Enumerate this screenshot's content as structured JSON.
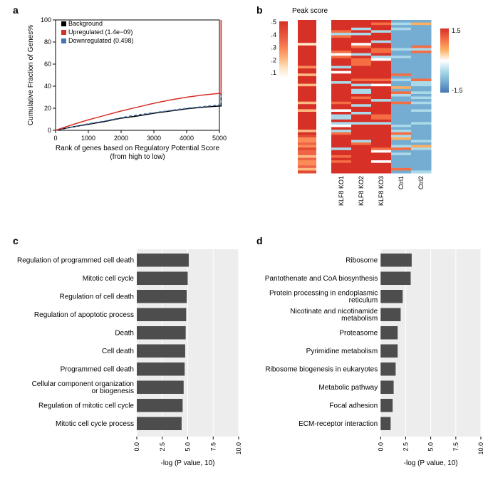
{
  "panels": {
    "a": "a",
    "b": "b",
    "c": "c",
    "d": "d"
  },
  "panel_a": {
    "type": "line",
    "xlabel": "Rank of genes based on Regulatory Potential Score",
    "xlabel2": "(from high to low)",
    "ylabel": "Cumulative Fraction of Genes%",
    "xlim": [
      0,
      5000
    ],
    "ylim": [
      0,
      100
    ],
    "xticks": [
      0,
      1000,
      2000,
      3000,
      4000,
      5000
    ],
    "yticks": [
      0,
      20,
      40,
      60,
      80,
      100
    ],
    "legend": [
      {
        "label": "Background",
        "color": "#000000"
      },
      {
        "label": "Upregulated (1.4e−09)",
        "color": "#d73027"
      },
      {
        "label": "Downregulated (0.498)",
        "color": "#4575b4"
      }
    ],
    "series": {
      "background": [
        [
          0,
          0
        ],
        [
          500,
          3
        ],
        [
          1000,
          5.5
        ],
        [
          1500,
          8
        ],
        [
          2000,
          11
        ],
        [
          2500,
          13
        ],
        [
          3000,
          15.5
        ],
        [
          3500,
          17.5
        ],
        [
          4000,
          19.5
        ],
        [
          4500,
          21
        ],
        [
          5000,
          22
        ],
        [
          5050,
          22
        ],
        [
          5050,
          100
        ]
      ],
      "upregulated": [
        [
          0,
          0
        ],
        [
          500,
          5
        ],
        [
          1000,
          9.5
        ],
        [
          1500,
          13.5
        ],
        [
          2000,
          17.5
        ],
        [
          2500,
          21
        ],
        [
          3000,
          24.5
        ],
        [
          3500,
          27.5
        ],
        [
          4000,
          30
        ],
        [
          4500,
          32
        ],
        [
          5000,
          33.5
        ],
        [
          5050,
          33.5
        ],
        [
          5050,
          100
        ]
      ],
      "downregulated": [
        [
          0,
          0
        ],
        [
          500,
          3
        ],
        [
          1000,
          6
        ],
        [
          1500,
          8.5
        ],
        [
          2000,
          11.5
        ],
        [
          2500,
          14
        ],
        [
          3000,
          16
        ],
        [
          3500,
          18
        ],
        [
          4000,
          20
        ],
        [
          4500,
          21.5
        ],
        [
          5000,
          23
        ],
        [
          5050,
          23
        ],
        [
          5050,
          100
        ]
      ]
    },
    "colors": {
      "background": "#000000",
      "upregulated": "#d73027",
      "downregulated": "#4575b4"
    },
    "line_width": 1.5,
    "dash": {
      "downregulated": "4,3"
    },
    "plot_bg": "#ffffff",
    "border_color": "#000000"
  },
  "panel_b": {
    "type": "heatmap",
    "peak_label": "Peak score",
    "peak_scale_ticks": [
      "0.5",
      "0.4",
      "0.3",
      "0.2",
      "0.1"
    ],
    "peak_scale_colors": [
      "#d73027",
      "#e34a33",
      "#ef6548",
      "#fc8d59",
      "#fdbb84",
      "#fee8c8",
      "#ffffff"
    ],
    "expr_scale_ticks": [
      "1.5",
      "-1.5"
    ],
    "expr_scale_colors": [
      "#d73027",
      "#f46d43",
      "#fdae61",
      "#ffffff",
      "#abd9e9",
      "#74add1",
      "#4575b4"
    ],
    "columns": [
      "KLF8 KO1",
      "KLF8 KO2",
      "KLF8 KO3",
      "Ctrl1",
      "Ctrl2"
    ],
    "col_colors_pattern": [
      "red",
      "red-mixed",
      "red-mixed",
      "blue",
      "blue"
    ],
    "n_rows": 60
  },
  "panel_c": {
    "type": "bar",
    "xlabel": "-log (P value, 10)",
    "xticks": [
      "0.0",
      "2.5",
      "5.0",
      "7.5",
      "10.0"
    ],
    "xlim": [
      0,
      10
    ],
    "bar_color": "#4d4d4d",
    "plot_bg": "#ededed",
    "grid_color": "#ffffff",
    "items": [
      {
        "label": "Regulation of programmed cell death",
        "value": 5.1
      },
      {
        "label": "Mitotic cell cycle",
        "value": 5.0
      },
      {
        "label": "Regulation of cell death",
        "value": 4.9
      },
      {
        "label": "Regulation of apoptotic process",
        "value": 4.85
      },
      {
        "label": "Death",
        "value": 4.8
      },
      {
        "label": "Cell death",
        "value": 4.75
      },
      {
        "label": "Programmed cell death",
        "value": 4.7
      },
      {
        "label": "Cellular component organization\nor biogenesis",
        "value": 4.6
      },
      {
        "label": "Regulation of mitotic cell cycle",
        "value": 4.5
      },
      {
        "label": "Mitotic cell cycle process",
        "value": 4.4
      }
    ]
  },
  "panel_d": {
    "type": "bar",
    "xlabel": "-log (P value, 10)",
    "xticks": [
      "0.0",
      "2.5",
      "5.0",
      "7.5",
      "10.0"
    ],
    "xlim": [
      0,
      10
    ],
    "bar_color": "#4d4d4d",
    "plot_bg": "#ededed",
    "grid_color": "#ffffff",
    "items": [
      {
        "label": "Ribosome",
        "value": 3.1
      },
      {
        "label": "Pantothenate and CoA biosynthesis",
        "value": 3.0
      },
      {
        "label": "Protein processing in endoplasmic\nreticulum",
        "value": 2.2
      },
      {
        "label": "Nicotinate and nicotinamide\nmetabolism",
        "value": 2.0
      },
      {
        "label": "Proteasome",
        "value": 1.7
      },
      {
        "label": "Pyrimidine metabolism",
        "value": 1.7
      },
      {
        "label": "Ribosome biogenesis in eukaryotes",
        "value": 1.5
      },
      {
        "label": "Metabolic pathway",
        "value": 1.3
      },
      {
        "label": "Focal adhesion",
        "value": 1.2
      },
      {
        "label": "ECM-receptor interaction",
        "value": 1.0
      }
    ]
  }
}
